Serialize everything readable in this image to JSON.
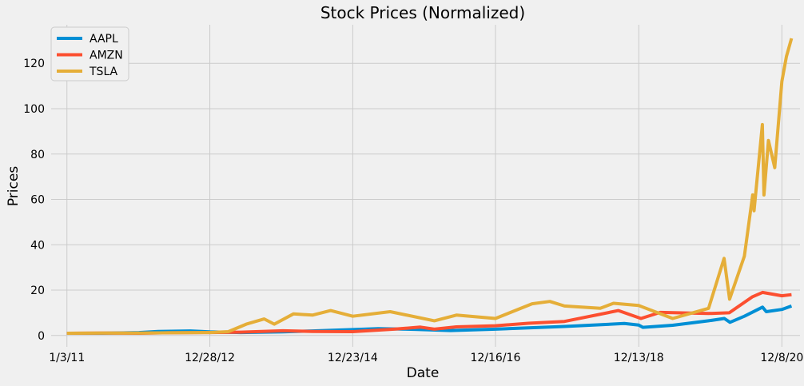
{
  "chart_data": {
    "type": "line",
    "title": "Stock Prices (Normalized)",
    "xlabel": "Date",
    "ylabel": "Prices",
    "xlim": [
      "2010-10-15",
      "2021-03-10"
    ],
    "ylim": [
      -5,
      137
    ],
    "grid": true,
    "legend_position": "top-left",
    "x_ticks": [
      {
        "label": "1/3/11",
        "date": "2011-01-03"
      },
      {
        "label": "12/28/12",
        "date": "2012-12-28"
      },
      {
        "label": "12/23/14",
        "date": "2014-12-23"
      },
      {
        "label": "12/16/16",
        "date": "2016-12-16"
      },
      {
        "label": "12/13/18",
        "date": "2018-12-13"
      },
      {
        "label": "12/8/20",
        "date": "2020-12-08"
      }
    ],
    "y_ticks": [
      0,
      20,
      40,
      60,
      80,
      100,
      120
    ],
    "series": [
      {
        "name": "AAPL",
        "color": "#008fd5",
        "points": [
          [
            "2011-01-03",
            1.0
          ],
          [
            "2011-07-01",
            1.0
          ],
          [
            "2012-01-03",
            1.3
          ],
          [
            "2012-04-10",
            1.8
          ],
          [
            "2012-09-20",
            2.0
          ],
          [
            "2012-12-28",
            1.6
          ],
          [
            "2013-06-03",
            1.3
          ],
          [
            "2014-01-02",
            1.6
          ],
          [
            "2014-06-02",
            2.0
          ],
          [
            "2014-12-23",
            2.6
          ],
          [
            "2015-05-01",
            3.0
          ],
          [
            "2015-11-02",
            2.7
          ],
          [
            "2016-05-02",
            2.2
          ],
          [
            "2016-12-16",
            2.8
          ],
          [
            "2017-06-01",
            3.4
          ],
          [
            "2017-12-01",
            4.0
          ],
          [
            "2018-10-01",
            5.3
          ],
          [
            "2018-12-13",
            4.6
          ],
          [
            "2019-01-03",
            3.6
          ],
          [
            "2019-06-03",
            4.5
          ],
          [
            "2019-12-02",
            6.5
          ],
          [
            "2020-02-20",
            7.5
          ],
          [
            "2020-03-20",
            5.8
          ],
          [
            "2020-06-01",
            8.5
          ],
          [
            "2020-09-01",
            12.5
          ],
          [
            "2020-09-20",
            10.5
          ],
          [
            "2020-12-08",
            11.5
          ],
          [
            "2021-01-26",
            13.0
          ]
        ]
      },
      {
        "name": "AMZN",
        "color": "#fc4f30",
        "points": [
          [
            "2011-01-03",
            1.0
          ],
          [
            "2011-07-01",
            1.1
          ],
          [
            "2012-01-03",
            1.0
          ],
          [
            "2012-06-01",
            1.2
          ],
          [
            "2012-12-28",
            1.3
          ],
          [
            "2013-06-03",
            1.5
          ],
          [
            "2014-01-02",
            2.1
          ],
          [
            "2014-06-02",
            1.8
          ],
          [
            "2014-12-23",
            1.7
          ],
          [
            "2015-07-20",
            2.8
          ],
          [
            "2015-12-01",
            3.7
          ],
          [
            "2016-02-10",
            2.8
          ],
          [
            "2016-06-01",
            3.8
          ],
          [
            "2016-12-16",
            4.3
          ],
          [
            "2017-06-01",
            5.4
          ],
          [
            "2017-12-01",
            6.2
          ],
          [
            "2018-09-01",
            11.0
          ],
          [
            "2018-12-24",
            7.5
          ],
          [
            "2019-04-01",
            10.2
          ],
          [
            "2019-12-02",
            9.7
          ],
          [
            "2020-03-16",
            10.0
          ],
          [
            "2020-07-10",
            17.0
          ],
          [
            "2020-09-01",
            19.0
          ],
          [
            "2020-12-08",
            17.5
          ],
          [
            "2021-01-26",
            18.0
          ]
        ]
      },
      {
        "name": "TSLA",
        "color": "#e5ae38",
        "points": [
          [
            "2011-01-03",
            1.0
          ],
          [
            "2011-07-01",
            1.1
          ],
          [
            "2012-01-03",
            1.1
          ],
          [
            "2012-06-01",
            1.2
          ],
          [
            "2012-12-28",
            1.3
          ],
          [
            "2013-04-01",
            1.7
          ],
          [
            "2013-07-01",
            5.0
          ],
          [
            "2013-09-30",
            7.3
          ],
          [
            "2013-11-20",
            5.0
          ],
          [
            "2014-02-25",
            9.5
          ],
          [
            "2014-06-02",
            9.0
          ],
          [
            "2014-09-02",
            11.0
          ],
          [
            "2014-12-23",
            8.5
          ],
          [
            "2015-07-01",
            10.5
          ],
          [
            "2016-02-10",
            6.5
          ],
          [
            "2016-06-01",
            9.0
          ],
          [
            "2016-12-16",
            7.5
          ],
          [
            "2017-06-20",
            14.0
          ],
          [
            "2017-09-18",
            15.0
          ],
          [
            "2017-12-01",
            13.0
          ],
          [
            "2018-06-01",
            12.0
          ],
          [
            "2018-08-07",
            14.2
          ],
          [
            "2018-12-13",
            13.2
          ],
          [
            "2019-06-03",
            7.5
          ],
          [
            "2019-12-02",
            12.0
          ],
          [
            "2020-02-19",
            34.0
          ],
          [
            "2020-03-18",
            16.0
          ],
          [
            "2020-06-01",
            35.0
          ],
          [
            "2020-07-13",
            62.0
          ],
          [
            "2020-07-20",
            55.0
          ],
          [
            "2020-08-31",
            93.0
          ],
          [
            "2020-09-08",
            62.0
          ],
          [
            "2020-10-01",
            86.0
          ],
          [
            "2020-11-02",
            74.0
          ],
          [
            "2020-12-08",
            112.0
          ],
          [
            "2020-12-31",
            123.0
          ],
          [
            "2021-01-26",
            131.0
          ]
        ]
      }
    ]
  }
}
